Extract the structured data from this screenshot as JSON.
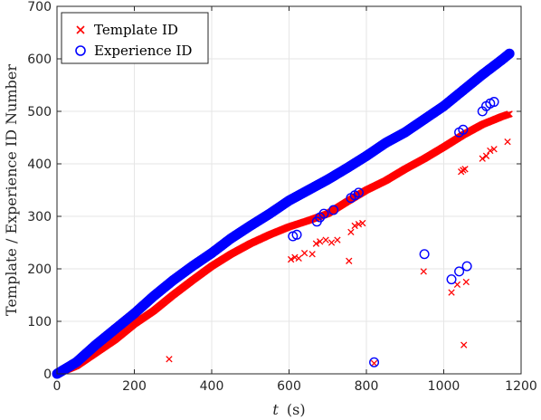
{
  "chart_data": {
    "type": "scatter",
    "title": "",
    "xlabel_italic": "t",
    "xlabel_unit": "(s)",
    "ylabel": "Template / Experience ID Number",
    "xlim": [
      0,
      1200
    ],
    "ylim": [
      0,
      700
    ],
    "xticks": [
      0,
      200,
      400,
      600,
      800,
      1000,
      1200
    ],
    "yticks": [
      0,
      100,
      200,
      300,
      400,
      500,
      600,
      700
    ],
    "grid": true,
    "legend_position": "top-left",
    "series": [
      {
        "name": "Template ID",
        "marker": "x",
        "color": "#ff0000",
        "trend": [
          [
            0,
            0
          ],
          [
            50,
            15
          ],
          [
            100,
            40
          ],
          [
            150,
            65
          ],
          [
            200,
            95
          ],
          [
            250,
            120
          ],
          [
            300,
            150
          ],
          [
            350,
            178
          ],
          [
            400,
            205
          ],
          [
            450,
            228
          ],
          [
            500,
            248
          ],
          [
            550,
            265
          ],
          [
            600,
            280
          ],
          [
            650,
            292
          ],
          [
            700,
            305
          ],
          [
            750,
            328
          ],
          [
            800,
            350
          ],
          [
            850,
            368
          ],
          [
            900,
            390
          ],
          [
            950,
            410
          ],
          [
            1000,
            432
          ],
          [
            1050,
            455
          ],
          [
            1100,
            475
          ],
          [
            1150,
            490
          ],
          [
            1170,
            495
          ]
        ],
        "outliers": [
          [
            290,
            28
          ],
          [
            605,
            218
          ],
          [
            615,
            222
          ],
          [
            625,
            220
          ],
          [
            640,
            230
          ],
          [
            660,
            228
          ],
          [
            670,
            248
          ],
          [
            680,
            252
          ],
          [
            695,
            255
          ],
          [
            710,
            250
          ],
          [
            725,
            255
          ],
          [
            755,
            215
          ],
          [
            760,
            270
          ],
          [
            770,
            282
          ],
          [
            780,
            285
          ],
          [
            790,
            287
          ],
          [
            820,
            20
          ],
          [
            948,
            195
          ],
          [
            1020,
            155
          ],
          [
            1035,
            170
          ],
          [
            1045,
            385
          ],
          [
            1050,
            388
          ],
          [
            1055,
            390
          ],
          [
            1052,
            55
          ],
          [
            1058,
            175
          ],
          [
            1100,
            410
          ],
          [
            1110,
            415
          ],
          [
            1120,
            425
          ],
          [
            1130,
            428
          ],
          [
            1165,
            442
          ]
        ]
      },
      {
        "name": "Experience ID",
        "marker": "o",
        "color": "#0000ff",
        "trend": [
          [
            0,
            0
          ],
          [
            50,
            22
          ],
          [
            100,
            55
          ],
          [
            150,
            85
          ],
          [
            200,
            115
          ],
          [
            250,
            148
          ],
          [
            300,
            178
          ],
          [
            350,
            205
          ],
          [
            400,
            230
          ],
          [
            450,
            258
          ],
          [
            500,
            282
          ],
          [
            550,
            305
          ],
          [
            600,
            330
          ],
          [
            650,
            350
          ],
          [
            700,
            370
          ],
          [
            750,
            392
          ],
          [
            800,
            415
          ],
          [
            850,
            440
          ],
          [
            900,
            460
          ],
          [
            950,
            485
          ],
          [
            1000,
            510
          ],
          [
            1050,
            540
          ],
          [
            1100,
            570
          ],
          [
            1150,
            598
          ],
          [
            1170,
            610
          ]
        ],
        "outliers": [
          [
            610,
            262
          ],
          [
            620,
            265
          ],
          [
            672,
            290
          ],
          [
            680,
            298
          ],
          [
            690,
            305
          ],
          [
            715,
            312
          ],
          [
            760,
            335
          ],
          [
            770,
            340
          ],
          [
            780,
            345
          ],
          [
            820,
            22
          ],
          [
            950,
            228
          ],
          [
            1020,
            180
          ],
          [
            1040,
            195
          ],
          [
            1040,
            460
          ],
          [
            1050,
            465
          ],
          [
            1060,
            205
          ],
          [
            1100,
            500
          ],
          [
            1110,
            510
          ],
          [
            1120,
            515
          ],
          [
            1130,
            518
          ]
        ]
      }
    ]
  }
}
